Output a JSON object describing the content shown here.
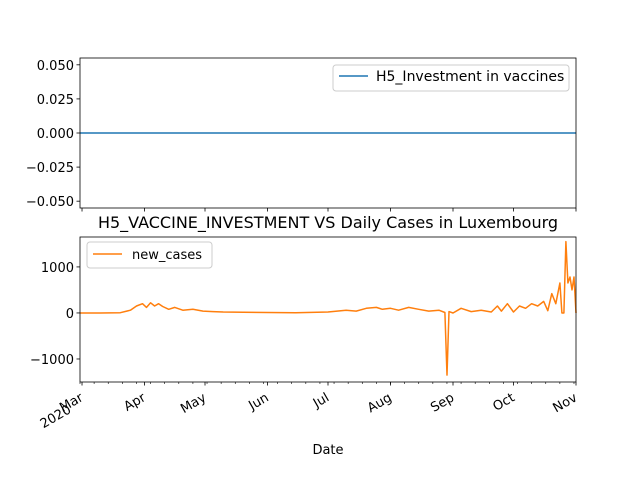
{
  "figure": {
    "xlabel": "Date",
    "colors": {
      "series1": "#1f77b4",
      "series2": "#ff7f0e",
      "axis": "#000000"
    }
  },
  "chart_data": [
    {
      "type": "line",
      "title": "",
      "xlabel": "",
      "ylabel": "",
      "ylim": [
        -0.055,
        0.055
      ],
      "yticks": [
        0.05,
        0.025,
        0.0,
        -0.025,
        -0.05
      ],
      "ytick_labels": [
        "0.050",
        "0.025",
        "0.000",
        "−0.025",
        "−0.050"
      ],
      "legend": {
        "placement": "upper right",
        "entries": [
          "H5_Investment in vaccines"
        ]
      },
      "grid": false,
      "series": [
        {
          "name": "H5_Investment in vaccines",
          "color": "#1f77b4",
          "x": [
            "2020-02-29",
            "2020-11-01"
          ],
          "y": [
            0,
            0
          ]
        }
      ]
    },
    {
      "type": "line",
      "title": "H5_VACCINE_INVESTMENT VS Daily Cases in Luxembourg",
      "xlabel": "Date",
      "ylabel": "",
      "ylim": [
        -1500,
        1650
      ],
      "yticks": [
        1000,
        0,
        -1000
      ],
      "ytick_labels": [
        "1000",
        "0",
        "−1000"
      ],
      "xlim": [
        "2020-02-29",
        "2020-11-01"
      ],
      "xticks": [
        "2020-03-01",
        "2020-04-01",
        "2020-05-01",
        "2020-06-01",
        "2020-07-01",
        "2020-08-01",
        "2020-09-01",
        "2020-10-01",
        "2020-11-01"
      ],
      "xtick_labels": [
        "Mar\n2020",
        "Apr",
        "May",
        "Jun",
        "Jul",
        "Aug",
        "Sep",
        "Oct",
        "Nov"
      ],
      "legend": {
        "placement": "upper left",
        "entries": [
          "new_cases"
        ]
      },
      "grid": false,
      "series": [
        {
          "name": "new_cases",
          "color": "#ff7f0e",
          "x": [
            "2020-02-29",
            "2020-03-10",
            "2020-03-20",
            "2020-03-25",
            "2020-03-28",
            "2020-03-31",
            "2020-04-02",
            "2020-04-04",
            "2020-04-06",
            "2020-04-08",
            "2020-04-10",
            "2020-04-13",
            "2020-04-16",
            "2020-04-20",
            "2020-04-25",
            "2020-04-30",
            "2020-05-05",
            "2020-05-10",
            "2020-05-20",
            "2020-06-01",
            "2020-06-15",
            "2020-07-01",
            "2020-07-10",
            "2020-07-15",
            "2020-07-20",
            "2020-07-25",
            "2020-07-28",
            "2020-08-01",
            "2020-08-05",
            "2020-08-10",
            "2020-08-15",
            "2020-08-20",
            "2020-08-25",
            "2020-08-28",
            "2020-08-29",
            "2020-08-30",
            "2020-09-01",
            "2020-09-05",
            "2020-09-10",
            "2020-09-15",
            "2020-09-20",
            "2020-09-23",
            "2020-09-25",
            "2020-09-28",
            "2020-10-01",
            "2020-10-04",
            "2020-10-07",
            "2020-10-10",
            "2020-10-13",
            "2020-10-16",
            "2020-10-18",
            "2020-10-20",
            "2020-10-22",
            "2020-10-24",
            "2020-10-25",
            "2020-10-26",
            "2020-10-27",
            "2020-10-28",
            "2020-10-29",
            "2020-10-30",
            "2020-10-31",
            "2020-11-01"
          ],
          "y": [
            0,
            0,
            5,
            60,
            150,
            200,
            120,
            220,
            150,
            200,
            140,
            80,
            120,
            60,
            80,
            40,
            30,
            20,
            15,
            10,
            5,
            20,
            60,
            40,
            100,
            120,
            80,
            100,
            60,
            120,
            80,
            40,
            60,
            10,
            -1350,
            30,
            0,
            100,
            30,
            60,
            20,
            150,
            40,
            200,
            20,
            150,
            100,
            200,
            150,
            250,
            50,
            420,
            200,
            650,
            0,
            0,
            1550,
            650,
            780,
            500,
            780,
            0
          ]
        }
      ]
    }
  ]
}
